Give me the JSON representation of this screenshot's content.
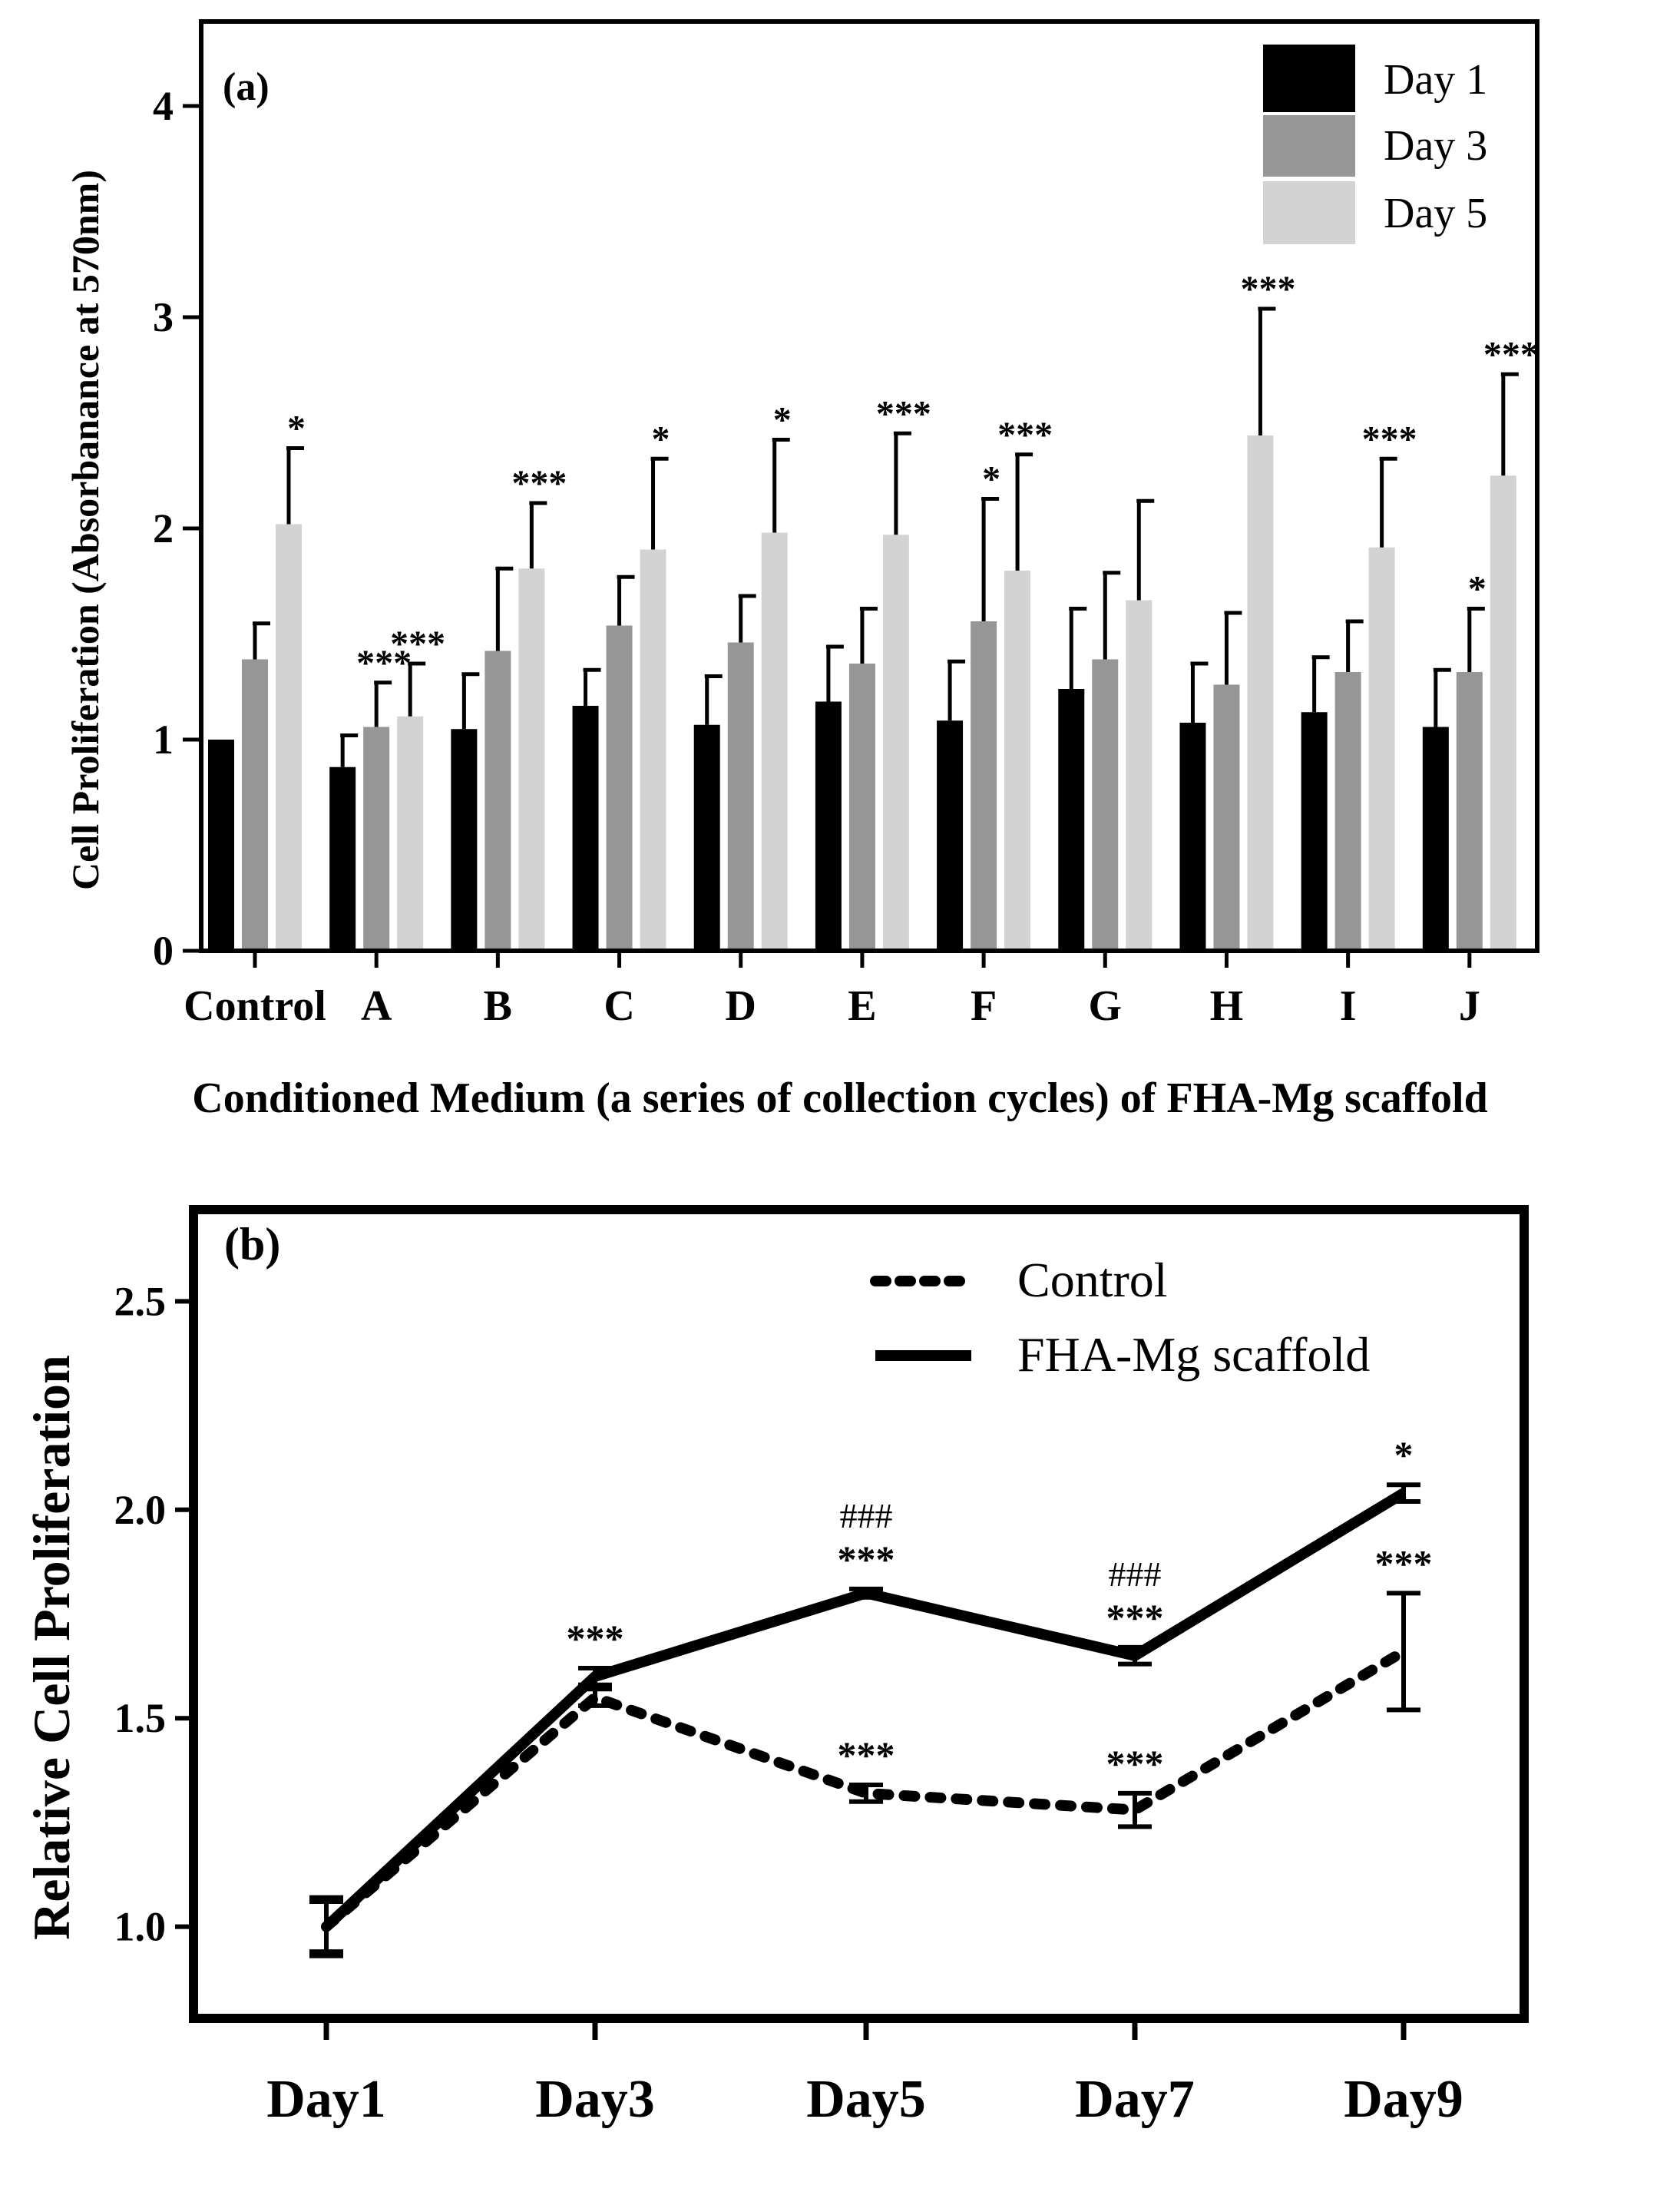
{
  "chart_data": [
    {
      "panel_label": "(a)",
      "type": "bar",
      "xlabel": "Conditioned Medium (a series of collection cycles) of FHA-Mg scaffold",
      "ylabel": "Cell Proliferation (Absorbanance at 570nm)",
      "ylim": [
        0,
        4.4
      ],
      "yticks": [
        "0",
        "1",
        "2",
        "3",
        "4"
      ],
      "legend_position": "top-right",
      "categories": [
        "Control",
        "A",
        "B",
        "C",
        "D",
        "E",
        "F",
        "G",
        "H",
        "I",
        "J"
      ],
      "series": [
        {
          "name": "Day 1",
          "color": "#000000",
          "values": [
            1.0,
            0.87,
            1.05,
            1.16,
            1.07,
            1.18,
            1.09,
            1.24,
            1.08,
            1.13,
            1.06
          ],
          "errors": [
            0.0,
            0.15,
            0.26,
            0.17,
            0.23,
            0.26,
            0.28,
            0.38,
            0.28,
            0.26,
            0.27
          ],
          "significance": [
            "",
            "",
            "",
            "",
            "",
            "",
            "",
            "",
            "",
            "",
            ""
          ]
        },
        {
          "name": "Day 3",
          "color": "#969696",
          "values": [
            1.38,
            1.06,
            1.42,
            1.54,
            1.46,
            1.36,
            1.56,
            1.38,
            1.26,
            1.32,
            1.32
          ],
          "errors": [
            0.17,
            0.21,
            0.39,
            0.23,
            0.22,
            0.26,
            0.58,
            0.41,
            0.34,
            0.24,
            0.3
          ],
          "significance": [
            "",
            "***",
            "",
            "",
            "",
            "",
            "*",
            "",
            "",
            "",
            "*"
          ]
        },
        {
          "name": "Day 5",
          "color": "#d3d3d3",
          "values": [
            2.02,
            1.11,
            1.81,
            1.9,
            1.98,
            1.97,
            1.8,
            1.66,
            2.44,
            1.91,
            2.25
          ],
          "errors": [
            0.36,
            0.25,
            0.31,
            0.43,
            0.44,
            0.48,
            0.55,
            0.47,
            0.6,
            0.42,
            0.48
          ],
          "significance": [
            "*",
            "***",
            "***",
            "*",
            "*",
            "***",
            "***",
            "",
            "***",
            "***",
            "***"
          ]
        }
      ]
    },
    {
      "panel_label": "(b)",
      "type": "line",
      "xlabel": "",
      "ylabel": "Relative Cell Proliferation",
      "ylim": [
        0.78,
        2.72
      ],
      "yticks": [
        "1.0",
        "1.5",
        "2.0",
        "2.5"
      ],
      "legend_position": "top-right",
      "categories": [
        "Day1",
        "Day3",
        "Day5",
        "Day7",
        "Day9"
      ],
      "series": [
        {
          "name": "Control",
          "style": "dotted",
          "color": "#000000",
          "values": [
            1.0,
            1.55,
            1.32,
            1.28,
            1.66
          ],
          "errors": [
            0.07,
            0.02,
            0.02,
            0.04,
            0.14
          ],
          "significance": [
            "",
            "",
            "***",
            "***",
            "***"
          ],
          "secondary_marks": [
            "",
            "",
            "",
            "",
            ""
          ]
        },
        {
          "name": "FHA-Mg scaffold",
          "style": "solid",
          "color": "#000000",
          "values": [
            1.0,
            1.6,
            1.8,
            1.65,
            2.04
          ],
          "errors": [
            0.06,
            0.02,
            0.01,
            0.02,
            0.02
          ],
          "significance": [
            "",
            "***",
            "***",
            "***",
            "*"
          ],
          "secondary_marks": [
            "",
            "",
            "###",
            "###",
            ""
          ]
        }
      ]
    }
  ]
}
